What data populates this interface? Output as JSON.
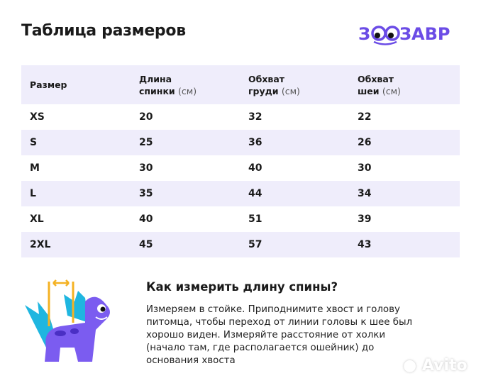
{
  "title": "Таблица размеров",
  "logo": "ЗООЗАВР",
  "table": {
    "headers": [
      {
        "bold": "Размер",
        "unit": ""
      },
      {
        "bold": "Длина спинки",
        "unit": "(см)"
      },
      {
        "bold": "Обхват груди",
        "unit": "(см)"
      },
      {
        "bold": "Обхват шеи",
        "unit": "(см)"
      }
    ],
    "header_lines": [
      [
        "Размер",
        ""
      ],
      [
        "Длина",
        "спинки"
      ],
      [
        "Обхват",
        "груди"
      ],
      [
        "Обхват",
        "шеи"
      ]
    ],
    "rows": [
      [
        "XS",
        "20",
        "32",
        "22"
      ],
      [
        "S",
        "25",
        "36",
        "26"
      ],
      [
        "M",
        "30",
        "40",
        "30"
      ],
      [
        "L",
        "35",
        "44",
        "34"
      ],
      [
        "XL",
        "40",
        "51",
        "39"
      ],
      [
        "2XL",
        "45",
        "57",
        "43"
      ]
    ]
  },
  "howto": {
    "heading": "Как измерить длину спины?",
    "text": "Измеряем в стойке. Приподнимите хвост и голову питомца, чтобы переход от линии головы к шее был хорошо виден. Измеряйте расстояние от холки (начало там, где располагается ошейник) до основания хвоста"
  },
  "watermark": "Avito",
  "colors": {
    "accent": "#6b4ce6",
    "row_alt": "#efedfb",
    "dino": "#7b5cf0",
    "spikes": "#1fb6e0",
    "measure": "#f4b223"
  }
}
